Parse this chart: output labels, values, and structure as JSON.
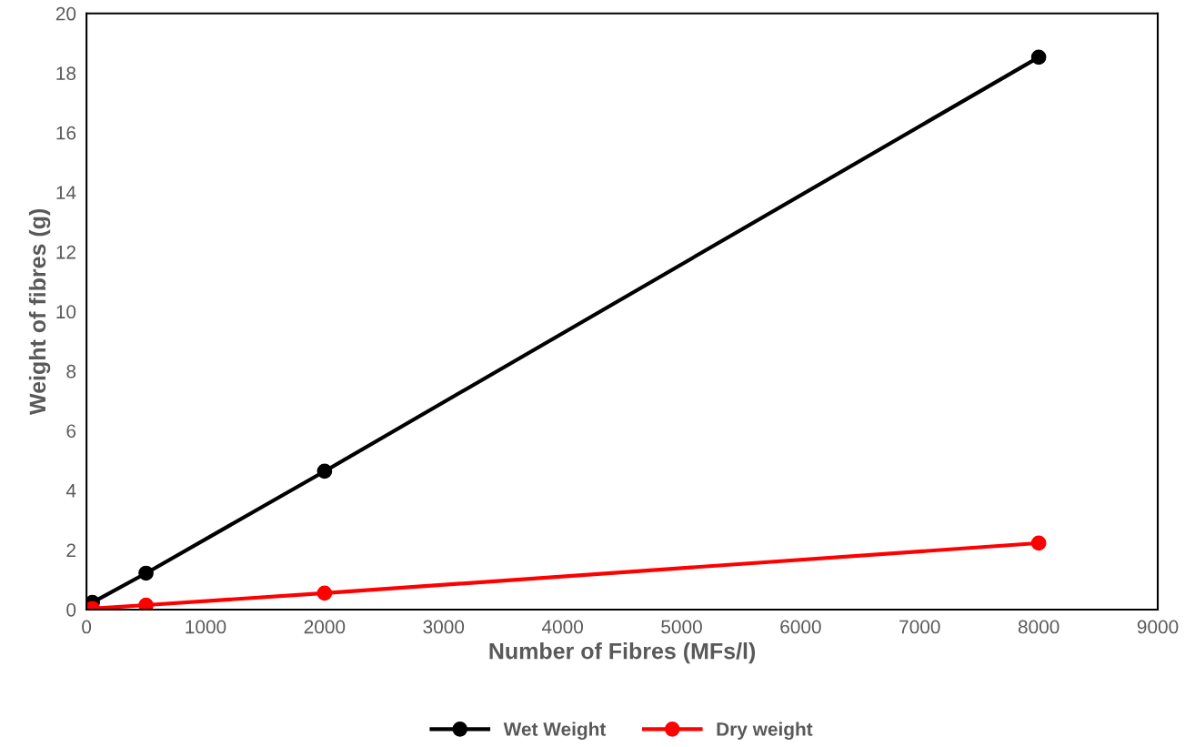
{
  "chart_data": {
    "type": "line",
    "xlabel": "Number of Fibres (MFs/l)",
    "ylabel": "Weight of fibres (g)",
    "x": [
      0,
      50,
      500,
      2000,
      8000
    ],
    "series": [
      {
        "name": "Wet Weight",
        "color": "#000000",
        "values": [
          0,
          0.24,
          1.22,
          4.64,
          18.53
        ]
      },
      {
        "name": "Dry weight",
        "color": "#ff0000",
        "values": [
          0,
          0.03,
          0.15,
          0.55,
          2.23
        ]
      }
    ],
    "xlim": [
      0,
      9000
    ],
    "xticks": [
      0,
      1000,
      2000,
      3000,
      4000,
      5000,
      6000,
      7000,
      8000,
      9000
    ],
    "ylim": [
      0,
      20
    ],
    "yticks": [
      0,
      2,
      4,
      6,
      8,
      10,
      12,
      14,
      16,
      18,
      20
    ],
    "grid": false,
    "legend": "bottom",
    "marker": "circle",
    "line_style": "solid"
  }
}
